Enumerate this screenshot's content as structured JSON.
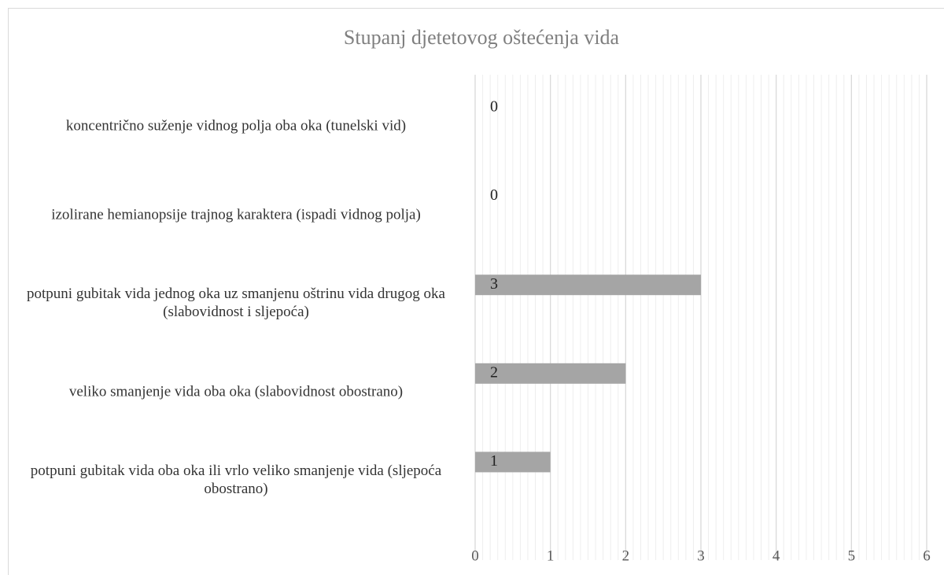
{
  "chart_data": {
    "type": "bar",
    "orientation": "horizontal",
    "title": "Stupanj djetetovog oštećenja vida",
    "categories": [
      "koncentrično suženje vidnog polja oba oka (tunelski vid)",
      "izolirane hemianopsije trajnog karaktera (ispadi vidnog polja)",
      "potpuni gubitak vida jednog oka uz smanjenu oštrinu vida drugog oka (slabovidnost i sljepoća)",
      "veliko smanjenje vida oba oka (slabovidnost obostrano)",
      "potpuni gubitak vida oba oka ili vrlo veliko smanjenje vida (sljepoća obostrano)"
    ],
    "values": [
      0,
      0,
      3,
      2,
      1
    ],
    "color": "#a5a5a5",
    "xlim": [
      0,
      6
    ],
    "xticks": [
      0,
      1,
      2,
      3,
      4,
      5,
      6
    ],
    "grid": true,
    "minor_grid_divisions": 10
  }
}
